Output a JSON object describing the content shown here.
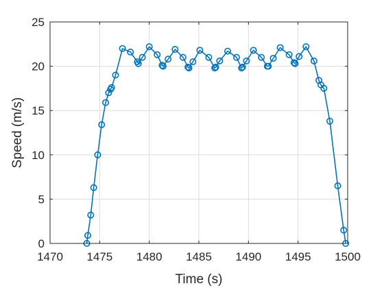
{
  "chart_data": {
    "type": "line",
    "title": "",
    "xlabel": "Time (s)",
    "ylabel": "Speed (m/s)",
    "xlim": [
      1470,
      1500
    ],
    "ylim": [
      0,
      25
    ],
    "xticks": [
      1470,
      1475,
      1480,
      1485,
      1490,
      1495,
      1500
    ],
    "yticks": [
      0,
      5,
      10,
      15,
      20,
      25
    ],
    "grid": true,
    "marker": "circle",
    "color": "#0072BD",
    "series": [
      {
        "x": [
          1473.7,
          1473.8,
          1474.1,
          1474.4,
          1474.8,
          1475.2,
          1475.6,
          1475.9,
          1476.1,
          1476.2,
          1476.6,
          1477.3,
          1478.1,
          1478.8,
          1478.9,
          1479.3,
          1480.0,
          1480.8,
          1481.3,
          1481.4,
          1481.9,
          1482.6,
          1483.4,
          1483.9,
          1484.0,
          1484.4,
          1485.1,
          1486.0,
          1486.6,
          1486.7,
          1487.1,
          1487.9,
          1488.8,
          1489.3,
          1489.4,
          1489.8,
          1490.5,
          1491.3,
          1491.9,
          1492.0,
          1492.5,
          1493.2,
          1494.1,
          1494.6,
          1494.7,
          1495.1,
          1495.8,
          1496.6,
          1497.1,
          1497.3,
          1497.6,
          1498.2,
          1499.0,
          1499.6,
          1499.8
        ],
        "y": [
          0,
          0.9,
          3.2,
          6.3,
          10.0,
          13.4,
          15.9,
          17.0,
          17.4,
          17.6,
          19.0,
          22.0,
          21.6,
          20.5,
          20.3,
          21.0,
          22.2,
          21.3,
          20.1,
          20.0,
          20.8,
          21.9,
          21.0,
          19.9,
          19.8,
          20.5,
          21.8,
          21.0,
          19.8,
          19.9,
          20.6,
          21.7,
          21.0,
          19.8,
          19.9,
          20.6,
          21.8,
          21.0,
          20.0,
          20.0,
          20.9,
          22.1,
          21.3,
          20.4,
          20.3,
          21.1,
          22.2,
          20.6,
          18.4,
          17.9,
          17.5,
          13.8,
          6.5,
          1.5,
          0
        ]
      }
    ]
  }
}
